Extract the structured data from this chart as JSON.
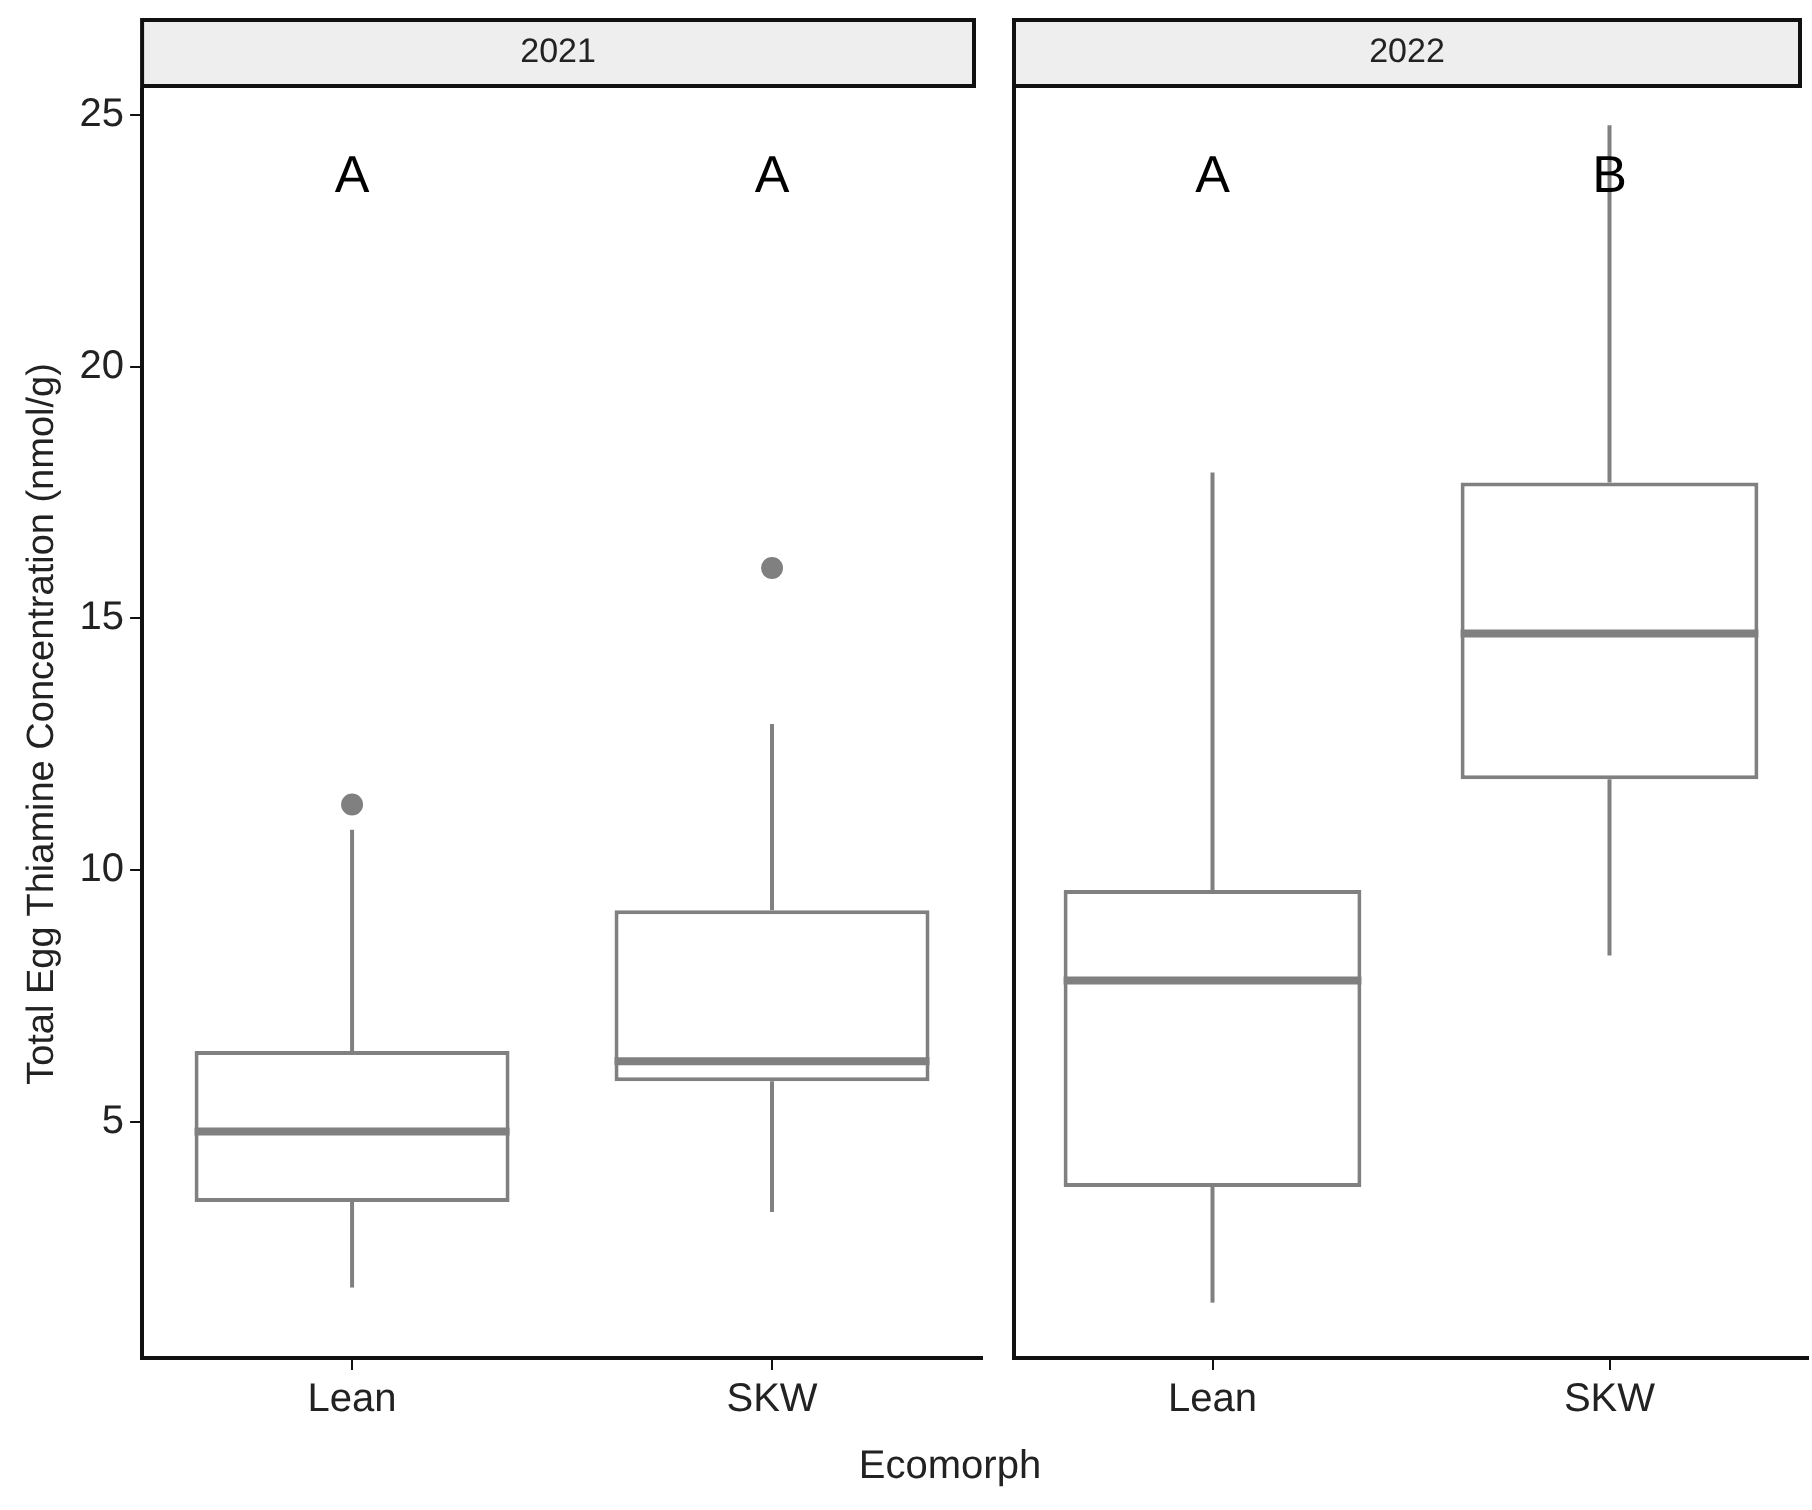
{
  "chart_data": [
    {
      "type": "box",
      "title": "2021",
      "ylabel": "Total Egg Thiamine Concentration (nmol/g)",
      "xlabel": "Ecomorph",
      "categories": [
        "Lean",
        "SKW"
      ],
      "boxes": [
        {
          "low": 1.7,
          "q1": 3.4,
          "median": 4.8,
          "q3": 6.4,
          "high": 10.8,
          "outliers": [
            11.3
          ]
        },
        {
          "low": 3.2,
          "q1": 5.8,
          "median": 6.2,
          "q3": 9.2,
          "high": 12.9,
          "outliers": [
            16.0
          ]
        }
      ],
      "color": "#808080",
      "ylim": [
        0.3,
        25.5
      ],
      "yticks": [
        5,
        10,
        15,
        20,
        25
      ],
      "annotations": [
        "A",
        "A"
      ]
    },
    {
      "type": "box",
      "title": "2022",
      "categories": [
        "Lean",
        "SKW"
      ],
      "boxes": [
        {
          "low": 1.4,
          "q1": 3.7,
          "median": 7.8,
          "q3": 9.6,
          "high": 17.9
        },
        {
          "low": 8.3,
          "q1": 11.8,
          "median": 14.7,
          "q3": 17.7,
          "high": 24.8
        }
      ],
      "color": "#808080",
      "ylim": [
        0.3,
        25.5
      ],
      "yticks": [
        5,
        10,
        15,
        20,
        25
      ],
      "tick_labels": "x",
      "annotations": [
        "A",
        "B"
      ]
    }
  ]
}
